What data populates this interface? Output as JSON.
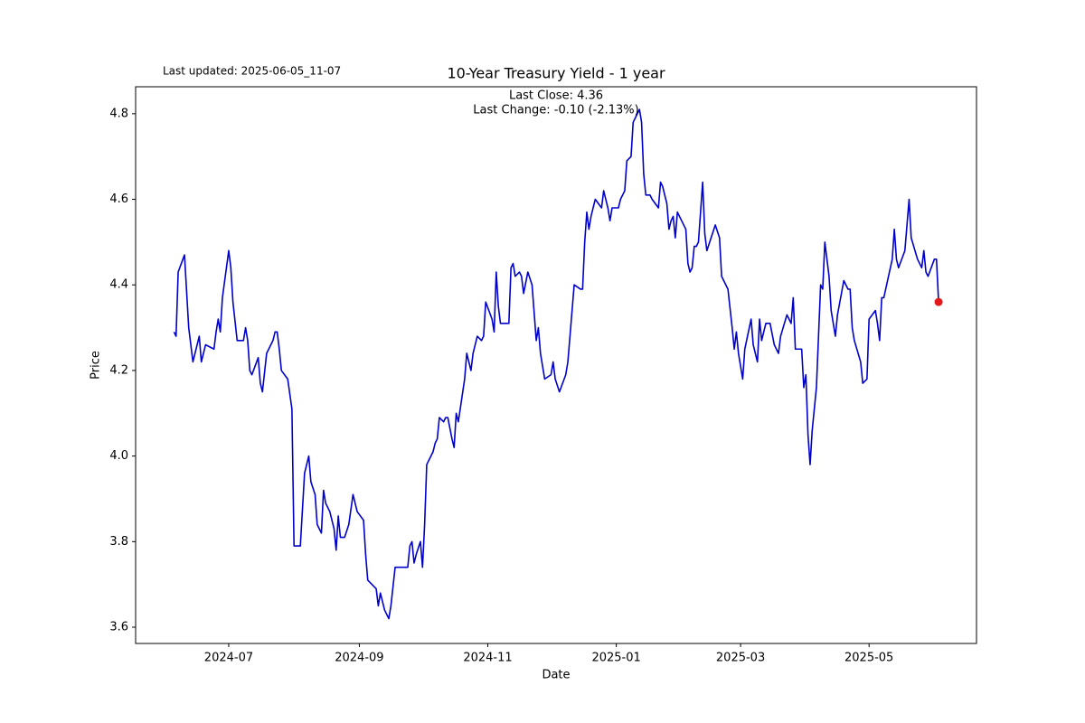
{
  "chart_data": {
    "type": "line",
    "title": "10-Year Treasury Yield - 1 year",
    "annotations": [
      "Last updated: 2025-06-05_11-07",
      "Last Close: 4.36",
      "Last Change: -0.10 (-2.13%)"
    ],
    "xlabel": "Date",
    "ylabel": "Price",
    "color": "#0000cd",
    "last_point_color": "#e31a1c",
    "grid": false,
    "xlim": [
      -44.2,
      355
    ],
    "ylim": [
      3.562,
      4.863
    ],
    "xticks": [
      {
        "value": 0,
        "label": "2024-07"
      },
      {
        "value": 62,
        "label": "2024-09"
      },
      {
        "value": 123,
        "label": "2024-11"
      },
      {
        "value": 184,
        "label": "2025-01"
      },
      {
        "value": 243,
        "label": "2025-03"
      },
      {
        "value": 304,
        "label": "2025-05"
      }
    ],
    "yticks": [
      3.6,
      3.8,
      {
        "value": 4,
        "label": "4.0"
      },
      4.2,
      4.4,
      4.6,
      4.8
    ],
    "x": [
      -26,
      -25,
      -24,
      -21,
      -19,
      -17,
      -14,
      -13,
      -11,
      -7,
      -6,
      -5,
      -4,
      -3,
      0,
      1,
      2,
      4,
      7,
      8,
      9,
      10,
      11,
      14,
      15,
      16,
      18,
      21,
      22,
      23,
      24,
      25,
      28,
      30,
      31,
      34,
      36,
      38,
      39,
      41,
      42,
      44,
      45,
      46,
      48,
      50,
      51,
      52,
      53,
      55,
      57,
      59,
      61,
      64,
      65,
      66,
      68,
      70,
      71,
      72,
      74,
      76,
      77,
      79,
      81,
      83,
      85,
      86,
      87,
      88,
      89,
      91,
      92,
      93,
      94,
      97,
      98,
      99,
      100,
      102,
      103,
      104,
      106,
      107,
      108,
      109,
      112,
      113,
      115,
      116,
      118,
      120,
      121,
      122,
      125,
      126,
      127,
      128,
      129,
      132,
      133,
      134,
      135,
      136,
      138,
      139,
      140,
      142,
      144,
      146,
      147,
      148,
      150,
      153,
      154,
      155,
      157,
      160,
      161,
      164,
      167,
      168,
      169,
      170,
      171,
      172,
      174,
      177,
      178,
      180,
      181,
      182,
      185,
      186,
      188,
      189,
      191,
      192,
      194,
      195,
      196,
      197,
      198,
      200,
      201,
      204,
      205,
      206,
      208,
      209,
      210,
      211,
      212,
      213,
      215,
      217,
      218,
      219,
      220,
      221,
      222,
      223,
      224,
      225,
      226,
      227,
      229,
      231,
      233,
      234,
      237,
      239,
      240,
      241,
      242,
      244,
      245,
      248,
      249,
      251,
      252,
      253,
      255,
      257,
      259,
      261,
      262,
      265,
      267,
      268,
      269,
      272,
      273,
      274,
      275,
      276,
      277,
      279,
      281,
      282,
      283,
      285,
      286,
      288,
      289,
      292,
      294,
      295,
      296,
      297,
      300,
      301,
      303,
      304,
      307,
      308,
      309,
      310,
      311,
      315,
      316,
      317,
      318,
      321,
      323,
      324,
      327,
      329,
      330,
      331,
      332,
      335,
      336,
      337
    ],
    "values": [
      4.29,
      4.28,
      4.43,
      4.47,
      4.3,
      4.22,
      4.28,
      4.22,
      4.26,
      4.25,
      4.29,
      4.32,
      4.29,
      4.37,
      4.48,
      4.44,
      4.36,
      4.27,
      4.27,
      4.3,
      4.27,
      4.2,
      4.19,
      4.23,
      4.17,
      4.15,
      4.24,
      4.27,
      4.29,
      4.29,
      4.25,
      4.2,
      4.18,
      4.11,
      3.79,
      3.79,
      3.96,
      4.0,
      3.94,
      3.91,
      3.84,
      3.82,
      3.92,
      3.89,
      3.87,
      3.83,
      3.78,
      3.86,
      3.81,
      3.81,
      3.84,
      3.91,
      3.87,
      3.85,
      3.77,
      3.71,
      3.7,
      3.69,
      3.65,
      3.68,
      3.64,
      3.62,
      3.65,
      3.74,
      3.74,
      3.74,
      3.74,
      3.79,
      3.8,
      3.75,
      3.77,
      3.8,
      3.74,
      3.84,
      3.98,
      4.01,
      4.03,
      4.04,
      4.09,
      4.08,
      4.09,
      4.09,
      4.04,
      4.02,
      4.1,
      4.08,
      4.18,
      4.24,
      4.2,
      4.24,
      4.28,
      4.27,
      4.28,
      4.36,
      4.32,
      4.29,
      4.43,
      4.35,
      4.31,
      4.31,
      4.31,
      4.44,
      4.45,
      4.42,
      4.43,
      4.42,
      4.38,
      4.43,
      4.4,
      4.27,
      4.3,
      4.24,
      4.18,
      4.19,
      4.22,
      4.18,
      4.15,
      4.19,
      4.22,
      4.4,
      4.39,
      4.39,
      4.5,
      4.57,
      4.53,
      4.56,
      4.6,
      4.58,
      4.62,
      4.58,
      4.55,
      4.58,
      4.58,
      4.6,
      4.62,
      4.69,
      4.7,
      4.78,
      4.8,
      4.81,
      4.78,
      4.66,
      4.61,
      4.61,
      4.6,
      4.58,
      4.64,
      4.63,
      4.59,
      4.53,
      4.55,
      4.56,
      4.51,
      4.57,
      4.55,
      4.53,
      4.45,
      4.43,
      4.44,
      4.49,
      4.49,
      4.5,
      4.57,
      4.64,
      4.52,
      4.48,
      4.51,
      4.54,
      4.51,
      4.42,
      4.39,
      4.3,
      4.25,
      4.29,
      4.24,
      4.18,
      4.25,
      4.32,
      4.26,
      4.22,
      4.32,
      4.27,
      4.31,
      4.31,
      4.26,
      4.24,
      4.28,
      4.33,
      4.31,
      4.37,
      4.25,
      4.25,
      4.16,
      4.19,
      4.05,
      3.98,
      4.06,
      4.16,
      4.4,
      4.39,
      4.5,
      4.42,
      4.34,
      4.28,
      4.33,
      4.41,
      4.39,
      4.39,
      4.3,
      4.27,
      4.22,
      4.17,
      4.18,
      4.32,
      4.34,
      4.31,
      4.27,
      4.37,
      4.37,
      4.46,
      4.53,
      4.46,
      4.44,
      4.48,
      4.6,
      4.51,
      4.46,
      4.44,
      4.48,
      4.43,
      4.42,
      4.46,
      4.46,
      4.36
    ]
  }
}
